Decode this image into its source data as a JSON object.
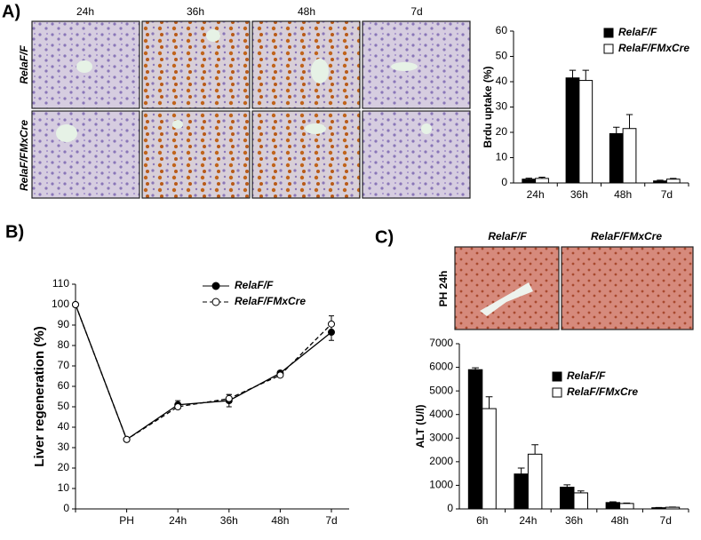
{
  "panel_labels": [
    "A)",
    "B)",
    "C)"
  ],
  "micrographs_a": {
    "columns": [
      "24h",
      "36h",
      "48h",
      "7d"
    ],
    "rows": [
      "RelaF/F",
      "RelaF/FMxCre"
    ]
  },
  "micrographs_c": {
    "columns": [
      "RelaF/F",
      "RelaF/FMxCre"
    ],
    "rows": [
      "PH 24h"
    ]
  },
  "chart_data": [
    {
      "type": "bar",
      "y_label": "Brdu uptake (%)",
      "categories": [
        "24h",
        "36h",
        "48h",
        "7d"
      ],
      "series": [
        {
          "name": "RelaF/F",
          "color": "#000000",
          "values": [
            1.5,
            41.5,
            19.5,
            0.8
          ],
          "errors": [
            0.4,
            3,
            2.5,
            0.3
          ]
        },
        {
          "name": "RelaF/FMxCre",
          "color": "#ffffff",
          "values": [
            1.8,
            40.5,
            21.5,
            1.5
          ],
          "errors": [
            0.5,
            4,
            5.5,
            0.3
          ]
        }
      ],
      "ylim": [
        0,
        60
      ],
      "yticks": [
        0,
        10,
        20,
        30,
        40,
        50,
        60
      ],
      "legend": "upper right"
    },
    {
      "type": "line",
      "y_label": "Liver regeneration (%)",
      "categories": [
        null,
        "PH",
        "24h",
        "36h",
        "48h",
        "7d"
      ],
      "series": [
        {
          "name": "RelaF/F",
          "color": "#000000",
          "line_style": "solid",
          "marker_fill": "#000000",
          "values": [
            100,
            34,
            51,
            53,
            66.5,
            86.5
          ],
          "errors": [
            null,
            null,
            2,
            3,
            1,
            4
          ]
        },
        {
          "name": "RelaF/FMxCre",
          "color": "#000000",
          "line_style": "dashed",
          "marker_fill": "#ffffff",
          "values": [
            100,
            34,
            50,
            54,
            65.5,
            90.5
          ],
          "errors": [
            null,
            null,
            1,
            2,
            1,
            4
          ]
        }
      ],
      "ylim": [
        0,
        110
      ],
      "yticks": [
        0,
        10,
        20,
        30,
        40,
        50,
        60,
        70,
        80,
        90,
        100,
        110
      ],
      "legend": "upper right"
    },
    {
      "type": "bar",
      "y_label": "ALT (U/l)",
      "categories": [
        "6h",
        "24h",
        "36h",
        "48h",
        "7d"
      ],
      "series": [
        {
          "name": "RelaF/F",
          "color": "#000000",
          "values": [
            5900,
            1480,
            920,
            270,
            50
          ],
          "errors": [
            80,
            250,
            100,
            30,
            10
          ]
        },
        {
          "name": "RelaF/FMxCre",
          "color": "#ffffff",
          "values": [
            4250,
            2320,
            680,
            230,
            70
          ],
          "errors": [
            500,
            400,
            80,
            20,
            10
          ]
        }
      ],
      "ylim": [
        0,
        7000
      ],
      "yticks": [
        0,
        1000,
        2000,
        3000,
        4000,
        5000,
        6000,
        7000
      ],
      "legend": "upper right"
    }
  ]
}
